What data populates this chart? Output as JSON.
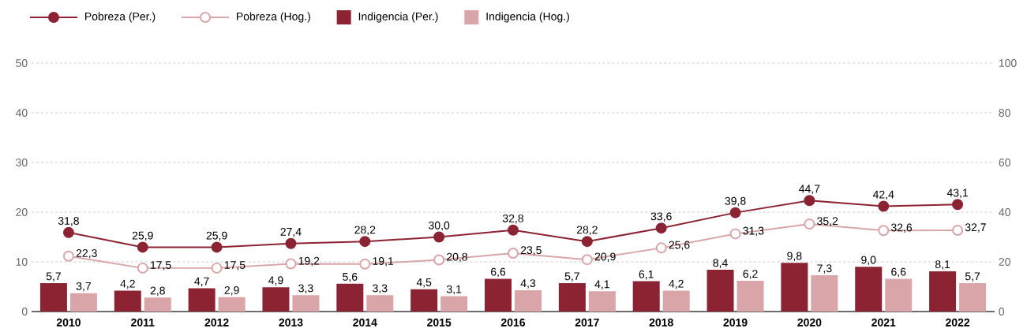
{
  "chart_data": {
    "type": "bar",
    "categories": [
      "2010",
      "2011",
      "2012",
      "2013",
      "2014",
      "2015",
      "2016",
      "2017",
      "2018",
      "2019",
      "2020",
      "2021",
      "2022"
    ],
    "series": [
      {
        "name": "Pobreza (Per.)",
        "type": "line",
        "axis": "y2",
        "color": "#8b2332",
        "values": [
          31.8,
          25.9,
          25.9,
          27.4,
          28.2,
          30.0,
          32.8,
          28.2,
          33.6,
          39.8,
          44.7,
          42.4,
          43.1
        ],
        "value_labels": [
          "31,8",
          "25,9",
          "25,9",
          "27,4",
          "28,2",
          "30,0",
          "32,8",
          "28,2",
          "33,6",
          "39,8",
          "44,7",
          "42,4",
          "43,1"
        ]
      },
      {
        "name": "Pobreza (Hog.)",
        "type": "line",
        "axis": "y2",
        "color": "#d9a5a8",
        "values": [
          22.3,
          17.5,
          17.5,
          19.2,
          19.1,
          20.8,
          23.5,
          20.9,
          25.6,
          31.3,
          35.2,
          32.6,
          32.7
        ],
        "value_labels": [
          "22,3",
          "17,5",
          "17,5",
          "19,2",
          "19,1",
          "20,8",
          "23,5",
          "20,9",
          "25,6",
          "31,3",
          "35,2",
          "32,6",
          "32,7"
        ]
      },
      {
        "name": "Indigencia (Per.)",
        "color": "#8b2332",
        "values": [
          5.7,
          4.2,
          4.7,
          4.9,
          5.6,
          4.5,
          6.6,
          5.7,
          6.1,
          8.4,
          9.8,
          9.0,
          8.1
        ],
        "value_labels": [
          "5,7",
          "4,2",
          "4,7",
          "4,9",
          "5,6",
          "4,5",
          "6,6",
          "5,7",
          "6,1",
          "8,4",
          "9,8",
          "9,0",
          "8,1"
        ]
      },
      {
        "name": "Indigencia (Hog.)",
        "color": "#d9a5a8",
        "values": [
          3.7,
          2.8,
          2.9,
          3.3,
          3.3,
          3.1,
          4.3,
          4.1,
          4.2,
          6.2,
          7.3,
          6.6,
          5.7
        ],
        "value_labels": [
          "3,7",
          "2,8",
          "2,9",
          "3,3",
          "3,3",
          "3,1",
          "4,3",
          "4,1",
          "4,2",
          "6,2",
          "7,3",
          "6,6",
          "5,7"
        ]
      }
    ],
    "ylim": [
      0,
      50
    ],
    "yticks": [
      0,
      10,
      20,
      30,
      40,
      50
    ],
    "y2lim": [
      0,
      100
    ],
    "y2ticks": [
      0,
      20,
      40,
      60,
      80,
      100
    ],
    "grid": "y",
    "legend": "top left",
    "marker": "circle",
    "line_style": "solid"
  }
}
